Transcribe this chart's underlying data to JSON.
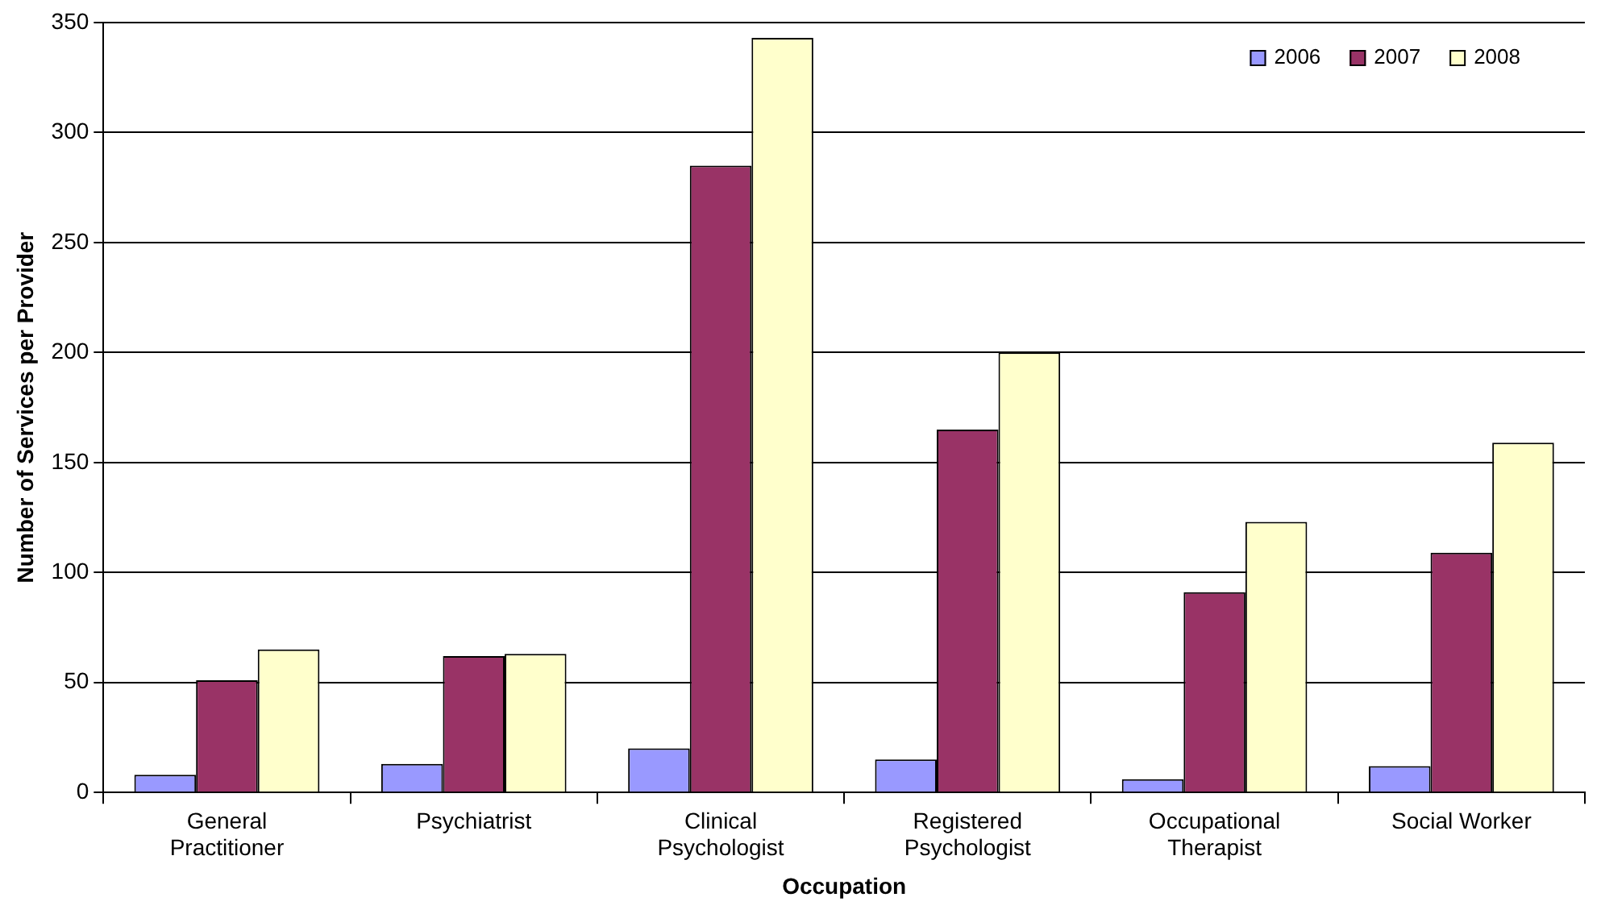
{
  "chart_data": {
    "type": "bar",
    "xlabel": "Occupation",
    "ylabel": "Number of Services per Provider",
    "categories": [
      "General Practitioner",
      "Psychiatrist",
      "Clinical Psychologist",
      "Registered Psychologist",
      "Occupational Therapist",
      "Social Worker"
    ],
    "series": [
      {
        "name": "2006",
        "color": "#9999ff",
        "values": [
          8,
          13,
          20,
          15,
          6,
          12
        ]
      },
      {
        "name": "2007",
        "color": "#993366",
        "values": [
          51,
          62,
          285,
          165,
          91,
          109
        ]
      },
      {
        "name": "2008",
        "color": "#ffffcc",
        "values": [
          65,
          63,
          343,
          200,
          123,
          159
        ]
      }
    ],
    "ylim": [
      0,
      350
    ],
    "yticks": [
      0,
      50,
      100,
      150,
      200,
      250,
      300,
      350
    ],
    "grid": "y",
    "legend": "top right"
  }
}
